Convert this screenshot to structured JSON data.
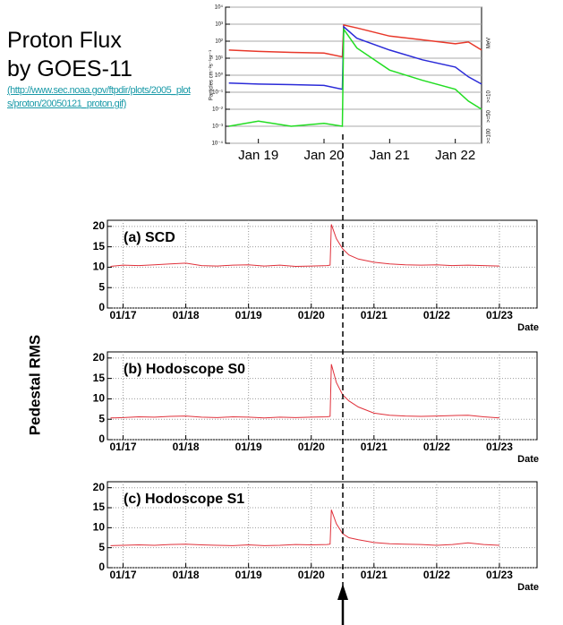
{
  "heading": [
    "Proton Flux",
    "by GOES-11"
  ],
  "source": "(http://www.sec.noaa.gov/ftpdir/plots/2005_plots/proton/20050121_proton.gif)",
  "y_label": "Pedestal RMS",
  "chart_data": [
    {
      "type": "line",
      "y_label": "Particles cm⁻²s⁻¹sr⁻¹",
      "units": "MeV",
      "ylog": true,
      "grid": true,
      "x": [
        18.55,
        19,
        19.5,
        20,
        20.28,
        20.3,
        20.5,
        21,
        21.5,
        22,
        22.2,
        22.4
      ],
      "xlim": [
        18.5,
        22.4
      ],
      "xticks": [
        {
          "value": 19,
          "label": "Jan 19"
        },
        {
          "value": 20,
          "label": "Jan 20"
        },
        {
          "value": 21,
          "label": "Jan 21"
        },
        {
          "value": 22,
          "label": "Jan 22"
        }
      ],
      "ylim": [
        0.0001,
        10000
      ],
      "yticks": [
        {
          "value": 0.0001,
          "label": "10⁻⁴"
        },
        {
          "value": 0.001,
          "label": "10⁻³"
        },
        {
          "value": 0.01,
          "label": "10⁻²"
        },
        {
          "value": 0.1,
          "label": "10⁻¹"
        },
        {
          "value": 1,
          "label": "10⁰"
        },
        {
          "value": 10,
          "label": "10¹"
        },
        {
          "value": 100,
          "label": "10²"
        },
        {
          "value": 1000,
          "label": "10³"
        },
        {
          "value": 10000,
          "label": "10⁴"
        }
      ],
      "series": [
        {
          "name": ">=10",
          "color": "#e8382a",
          "values": [
            30,
            25,
            22,
            20,
            12,
            900,
            600,
            200,
            120,
            70,
            90,
            30
          ]
        },
        {
          "name": ">=50",
          "color": "#2a2ad8",
          "values": [
            0.35,
            0.3,
            0.28,
            0.25,
            0.15,
            700,
            150,
            30,
            8,
            3,
            0.8,
            0.3
          ]
        },
        {
          "name": ">=100",
          "color": "#22dd22",
          "values": [
            0.001,
            0.002,
            0.001,
            0.0015,
            0.001,
            500,
            40,
            2,
            0.5,
            0.15,
            0.03,
            0.01
          ]
        }
      ]
    },
    {
      "type": "line",
      "title": "(a) SCD",
      "x_label": "Date",
      "grid": true,
      "x": [
        16.8,
        17,
        17.25,
        17.5,
        17.75,
        18,
        18.25,
        18.5,
        18.75,
        19,
        19.25,
        19.5,
        19.75,
        20,
        20.25,
        20.3,
        20.32,
        20.4,
        20.5,
        20.6,
        20.75,
        21,
        21.25,
        21.5,
        21.75,
        22,
        22.25,
        22.5,
        22.75,
        23
      ],
      "xlim": [
        16.75,
        23.6
      ],
      "xticks": [
        {
          "value": 17,
          "label": "01/17"
        },
        {
          "value": 18,
          "label": "01/18"
        },
        {
          "value": 19,
          "label": "01/19"
        },
        {
          "value": 20,
          "label": "01/20"
        },
        {
          "value": 21,
          "label": "01/21"
        },
        {
          "value": 22,
          "label": "01/22"
        },
        {
          "value": 23,
          "label": "01/23"
        }
      ],
      "ylim": [
        0,
        21.5
      ],
      "yticks": [
        0,
        5,
        10,
        15,
        20
      ],
      "series": [
        {
          "color": "#e0303a",
          "values": [
            10.2,
            10.5,
            10.4,
            10.6,
            10.8,
            11.0,
            10.4,
            10.3,
            10.5,
            10.6,
            10.3,
            10.5,
            10.2,
            10.3,
            10.4,
            10.5,
            20.5,
            17,
            14.5,
            13,
            12,
            11.2,
            10.8,
            10.6,
            10.5,
            10.6,
            10.4,
            10.5,
            10.4,
            10.3
          ]
        }
      ]
    },
    {
      "type": "line",
      "title": "(b) Hodoscope S0",
      "x_label": "Date",
      "grid": true,
      "x": [
        16.8,
        17,
        17.25,
        17.5,
        17.75,
        18,
        18.25,
        18.5,
        18.75,
        19,
        19.25,
        19.5,
        19.75,
        20,
        20.25,
        20.3,
        20.32,
        20.4,
        20.5,
        20.6,
        20.75,
        21,
        21.25,
        21.5,
        21.75,
        22,
        22.25,
        22.5,
        22.75,
        23
      ],
      "xlim": [
        16.75,
        23.6
      ],
      "xticks": [
        {
          "value": 17,
          "label": "01/17"
        },
        {
          "value": 18,
          "label": "01/18"
        },
        {
          "value": 19,
          "label": "01/19"
        },
        {
          "value": 20,
          "label": "01/20"
        },
        {
          "value": 21,
          "label": "01/21"
        },
        {
          "value": 22,
          "label": "01/22"
        },
        {
          "value": 23,
          "label": "01/23"
        }
      ],
      "ylim": [
        0,
        21.5
      ],
      "yticks": [
        0,
        5,
        10,
        15,
        20
      ],
      "series": [
        {
          "color": "#e0303a",
          "values": [
            5.3,
            5.4,
            5.6,
            5.5,
            5.7,
            5.8,
            5.5,
            5.4,
            5.6,
            5.5,
            5.3,
            5.5,
            5.4,
            5.5,
            5.6,
            5.7,
            18.5,
            14,
            11,
            9.5,
            8,
            6.5,
            6.0,
            5.8,
            5.7,
            5.8,
            5.9,
            6.0,
            5.6,
            5.3
          ]
        }
      ]
    },
    {
      "type": "line",
      "title": "(c) Hodoscope S1",
      "x_label": "Date",
      "grid": true,
      "x": [
        16.8,
        17,
        17.25,
        17.5,
        17.75,
        18,
        18.25,
        18.5,
        18.75,
        19,
        19.25,
        19.5,
        19.75,
        20,
        20.25,
        20.3,
        20.32,
        20.4,
        20.5,
        20.6,
        20.75,
        21,
        21.25,
        21.5,
        21.75,
        22,
        22.25,
        22.5,
        22.75,
        23
      ],
      "xlim": [
        16.75,
        23.6
      ],
      "xticks": [
        {
          "value": 17,
          "label": "01/17"
        },
        {
          "value": 18,
          "label": "01/18"
        },
        {
          "value": 19,
          "label": "01/19"
        },
        {
          "value": 20,
          "label": "01/20"
        },
        {
          "value": 21,
          "label": "01/21"
        },
        {
          "value": 22,
          "label": "01/22"
        },
        {
          "value": 23,
          "label": "01/23"
        }
      ],
      "ylim": [
        0,
        21.5
      ],
      "yticks": [
        0,
        5,
        10,
        15,
        20
      ],
      "series": [
        {
          "color": "#e0303a",
          "values": [
            5.5,
            5.6,
            5.7,
            5.6,
            5.8,
            5.9,
            5.7,
            5.6,
            5.5,
            5.7,
            5.5,
            5.6,
            5.8,
            5.7,
            5.8,
            5.9,
            14.5,
            11,
            8.5,
            7.5,
            7,
            6.3,
            6.0,
            5.9,
            5.8,
            5.6,
            5.8,
            6.2,
            5.8,
            5.6
          ]
        }
      ]
    }
  ]
}
